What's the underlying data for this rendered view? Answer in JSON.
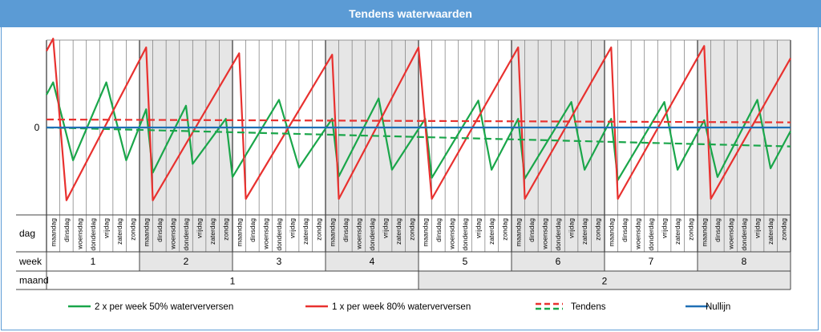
{
  "title": "Tendens waterwaarden",
  "chart_data": {
    "type": "line",
    "title": "Tendens waterwaarden",
    "ytick_zero": "0",
    "row_labels": {
      "day": "dag",
      "week": "week",
      "month": "maand"
    },
    "day_labels": [
      "maandag",
      "dinsdag",
      "woensdag",
      "donderdag",
      "vrijdag",
      "zaterdag",
      "zondag"
    ],
    "weeks": [
      "1",
      "2",
      "3",
      "4",
      "5",
      "6",
      "7",
      "8"
    ],
    "months": [
      "1",
      "2"
    ],
    "x_unit": "day",
    "xlim": [
      0,
      56
    ],
    "ylim": [
      -1.2,
      1.2
    ],
    "series": [
      {
        "name": "2 x per week 50% waterverversen",
        "color": "#1aa64a",
        "style": "solid",
        "points": [
          [
            0,
            0.45
          ],
          [
            0.5,
            0.62
          ],
          [
            2,
            -0.45
          ],
          [
            4.5,
            0.62
          ],
          [
            6,
            -0.45
          ],
          [
            7.5,
            0.25
          ],
          [
            8,
            -0.62
          ],
          [
            10.5,
            0.3
          ],
          [
            11,
            -0.5
          ],
          [
            13.5,
            0.12
          ],
          [
            14,
            -0.68
          ],
          [
            17.5,
            0.38
          ],
          [
            19,
            -0.55
          ],
          [
            21.5,
            0.12
          ],
          [
            22,
            -0.67
          ],
          [
            25,
            0.4
          ],
          [
            26,
            -0.58
          ],
          [
            28.5,
            0.12
          ],
          [
            29,
            -0.69
          ],
          [
            32.5,
            0.37
          ],
          [
            33.5,
            -0.58
          ],
          [
            35.5,
            0.12
          ],
          [
            36,
            -0.7
          ],
          [
            39.5,
            0.35
          ],
          [
            40.5,
            -0.58
          ],
          [
            42.5,
            0.12
          ],
          [
            43,
            -0.72
          ],
          [
            46.5,
            0.35
          ],
          [
            47.5,
            -0.58
          ],
          [
            49.5,
            0.1
          ],
          [
            50.5,
            -0.68
          ],
          [
            53.5,
            0.38
          ],
          [
            54.5,
            -0.56
          ],
          [
            56,
            -0.05
          ]
        ]
      },
      {
        "name": "1 x per week 80% waterverversen",
        "color": "#e8312f",
        "style": "solid",
        "points": [
          [
            0,
            1.05
          ],
          [
            0.5,
            1.22
          ],
          [
            1.5,
            -1.0
          ],
          [
            7.5,
            1.1
          ],
          [
            8,
            -1.0
          ],
          [
            14.5,
            1.02
          ],
          [
            15,
            -0.98
          ],
          [
            21.5,
            1.0
          ],
          [
            22,
            -0.98
          ],
          [
            28,
            1.1
          ],
          [
            29,
            -0.98
          ],
          [
            35.5,
            1.1
          ],
          [
            36,
            -0.98
          ],
          [
            42.5,
            1.1
          ],
          [
            43,
            -0.98
          ],
          [
            49.5,
            1.12
          ],
          [
            50,
            -0.98
          ],
          [
            56,
            0.95
          ]
        ]
      },
      {
        "name": "Tendens",
        "color": "#e8312f",
        "style": "dashed",
        "points": [
          [
            0,
            0.11
          ],
          [
            56,
            0.07
          ]
        ]
      },
      {
        "name": "Tendens",
        "color": "#1aa64a",
        "style": "dashed",
        "points": [
          [
            0,
            0.0
          ],
          [
            56,
            -0.26
          ]
        ]
      },
      {
        "name": "Nullijn",
        "color": "#1f6fb5",
        "style": "solid",
        "points": [
          [
            0,
            0.0
          ],
          [
            56,
            0.0
          ]
        ]
      }
    ],
    "legend": [
      {
        "label": "2 x per week 50% waterverversen",
        "color": "#1aa64a",
        "style": "solid"
      },
      {
        "label": "1 x per week 80% waterverversen",
        "color": "#e8312f",
        "style": "solid"
      },
      {
        "label": "Tendens",
        "color": "#e8312f",
        "color2": "#1aa64a",
        "style": "dashed-pair"
      },
      {
        "label": "Nullijn",
        "color": "#1f6fb5",
        "style": "solid"
      }
    ],
    "shaded_weeks": [
      "2",
      "4",
      "6",
      "8"
    ],
    "shade_color": "#e6e6e6",
    "legend_position": "bottom"
  }
}
